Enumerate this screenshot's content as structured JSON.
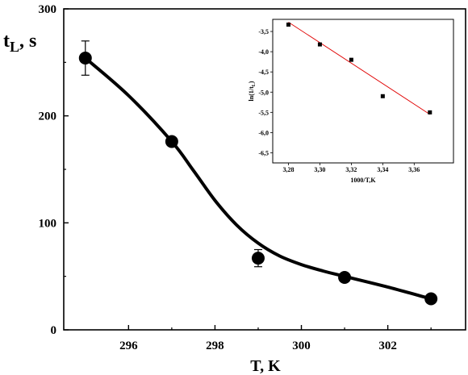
{
  "chart_data": [
    {
      "type": "scatter",
      "xlabel": "T, K",
      "ylabel_main": "t",
      "ylabel_sub": "L",
      "ylabel_unit": ", s",
      "xlim": [
        294.5,
        303.8
      ],
      "ylim": [
        0,
        300
      ],
      "xticks": [
        296,
        298,
        300,
        302
      ],
      "yticks": [
        0,
        100,
        200,
        300
      ],
      "grid": false,
      "series": [
        {
          "marker": "circle",
          "x": [
            295,
            297,
            299,
            301,
            303
          ],
          "y": [
            254,
            176,
            67,
            49,
            29
          ],
          "err_minus": [
            16,
            0,
            8,
            0,
            0
          ],
          "err_plus": [
            16,
            0,
            8,
            0,
            0
          ],
          "color": "#000000"
        }
      ],
      "fit_curve": {
        "x": [
          295,
          296,
          297,
          297.5,
          298,
          298.5,
          299,
          299.5,
          300,
          300.5,
          301,
          302,
          303
        ],
        "y": [
          254,
          219,
          176,
          149,
          121,
          98,
          81,
          69,
          61,
          55,
          50,
          40,
          29
        ],
        "color": "#000000"
      }
    },
    {
      "type": "scatter",
      "placement": "inset top-right",
      "xlabel": "1000/T,K",
      "ylabel": "ln(1/t",
      "ylabel_sub": "L",
      "ylabel_end": ")",
      "xlim": [
        3.27,
        3.385
      ],
      "ylim": [
        -6.75,
        -3.2
      ],
      "xticks": [
        "3,28",
        "3,30",
        "3,32",
        "3,34",
        "3,36"
      ],
      "xtick_values": [
        3.28,
        3.3,
        3.32,
        3.34,
        3.36
      ],
      "yticks": [
        "-3,5",
        "-4,0",
        "-4,5",
        "-5,0",
        "-5,5",
        "-6,0",
        "-6,5"
      ],
      "ytick_values": [
        -3.5,
        -4.0,
        -4.5,
        -5.0,
        -5.5,
        -6.0,
        -6.5
      ],
      "series": [
        {
          "marker": "square",
          "x": [
            3.28,
            3.3,
            3.32,
            3.34,
            3.37
          ],
          "y": [
            -3.33,
            -3.82,
            -4.2,
            -5.1,
            -5.5
          ],
          "color": "#000000"
        }
      ],
      "fit_line": {
        "x": [
          3.28,
          3.37
        ],
        "y": [
          -3.27,
          -5.55
        ],
        "color": "#e00000"
      }
    }
  ]
}
